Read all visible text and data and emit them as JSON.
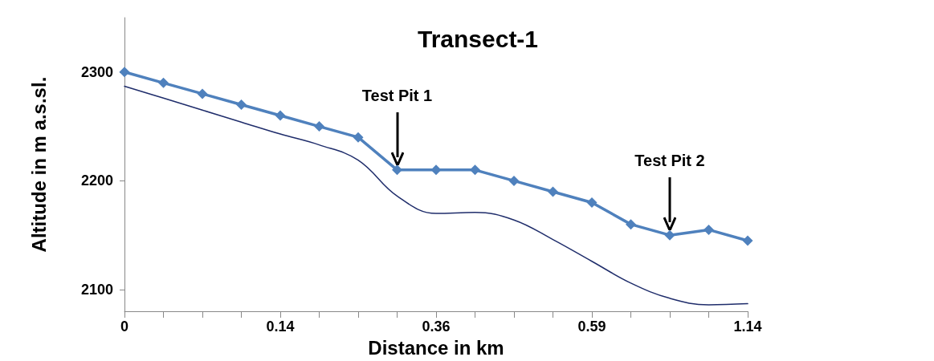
{
  "chart_data": {
    "type": "line",
    "title": "Transect-1",
    "xlabel": "Distance in km",
    "ylabel": "Altitude in m a.s.sl.",
    "categories": [
      "0",
      null,
      null,
      null,
      "0.14",
      null,
      null,
      null,
      "0.36",
      null,
      null,
      null,
      "0.59",
      null,
      null,
      null,
      "1.14"
    ],
    "series": [
      {
        "color": "#4f81bd",
        "marker": "diamond",
        "values": [
          2300,
          2290,
          2280,
          2270,
          2260,
          2250,
          2240,
          2210,
          2210,
          2210,
          2200,
          2190,
          2180,
          2160,
          2150,
          2155,
          2145
        ]
      },
      {
        "color": "#1f2d6b",
        "marker": "none",
        "values": [
          2287,
          2276,
          2265,
          2254,
          2243,
          2233,
          2219,
          2186,
          2170,
          2171,
          2164,
          2146,
          2126,
          2106,
          2092,
          2086,
          2087
        ]
      }
    ],
    "ylim": [
      2080,
      2350
    ],
    "yticks": [
      2100,
      2200,
      2300
    ],
    "grid": false,
    "annotations": [
      "Test Pit 1",
      "Test Pit 2"
    ]
  }
}
